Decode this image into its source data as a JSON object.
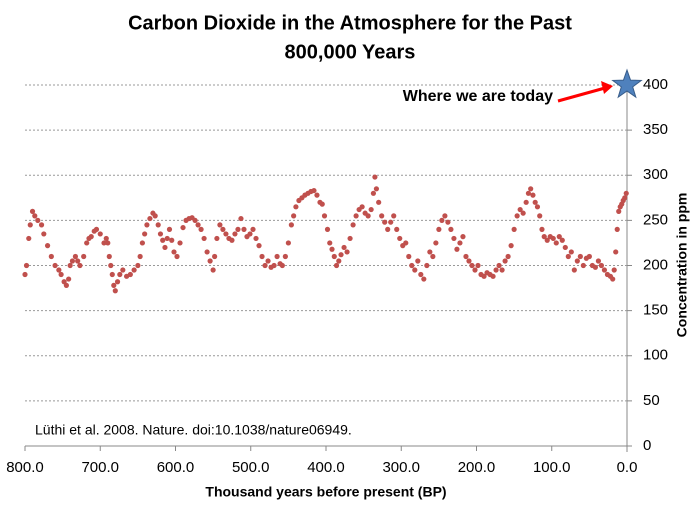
{
  "chart_data": {
    "type": "scatter",
    "title": [
      "Carbon Dioxide in the Atmosphere for the Past",
      "800,000 Years"
    ],
    "x_label": "Thousand years before present (BP)",
    "y_label": "Concentration in ppm",
    "source": "Lüthi et al. 2008. Nature. doi:10.1038/nature06949.",
    "color": "#c0504d",
    "grid": true,
    "xlim": [
      800,
      0
    ],
    "ylim": [
      0,
      400
    ],
    "xticks": [
      {
        "value": 800,
        "label": "800.0"
      },
      {
        "value": 700,
        "label": "700.0"
      },
      {
        "value": 600,
        "label": "600.0"
      },
      {
        "value": 500,
        "label": "500.0"
      },
      {
        "value": 400,
        "label": "400.0"
      },
      {
        "value": 300,
        "label": "300.0"
      },
      {
        "value": 200,
        "label": "200.0"
      },
      {
        "value": 100,
        "label": "100.0"
      },
      {
        "value": 0,
        "label": "0.0"
      }
    ],
    "yticks": [
      0,
      50,
      100,
      150,
      200,
      250,
      300,
      350,
      400
    ],
    "highlight": {
      "x": 0,
      "value": 400,
      "label": "Where we are today",
      "color": "#4f81bd",
      "arrow_color": "#ff0000"
    },
    "x": [
      800,
      798,
      795,
      793,
      790,
      787,
      783,
      778,
      775,
      770,
      765,
      760,
      755,
      752,
      748,
      745,
      742,
      740,
      737,
      733,
      730,
      727,
      722,
      718,
      715,
      712,
      708,
      705,
      700,
      695,
      692,
      690,
      688,
      686,
      684,
      682,
      680,
      677,
      674,
      670,
      665,
      660,
      655,
      650,
      647,
      644,
      641,
      638,
      634,
      630,
      627,
      623,
      620,
      617,
      614,
      611,
      608,
      605,
      602,
      598,
      594,
      590,
      586,
      582,
      578,
      574,
      570,
      566,
      562,
      558,
      554,
      550,
      548,
      545,
      541,
      537,
      533,
      529,
      525,
      521,
      517,
      513,
      509,
      505,
      501,
      497,
      493,
      489,
      485,
      481,
      477,
      473,
      469,
      465,
      461,
      458,
      454,
      450,
      446,
      443,
      440,
      436,
      432,
      428,
      424,
      420,
      416,
      412,
      408,
      405,
      402,
      398,
      395,
      392,
      389,
      386,
      383,
      380,
      376,
      372,
      368,
      364,
      360,
      356,
      352,
      348,
      344,
      340,
      337,
      335,
      333,
      330,
      326,
      322,
      318,
      314,
      310,
      306,
      302,
      298,
      294,
      290,
      286,
      282,
      278,
      274,
      270,
      266,
      262,
      258,
      254,
      250,
      246,
      242,
      238,
      234,
      230,
      226,
      222,
      218,
      214,
      210,
      206,
      202,
      198,
      194,
      190,
      186,
      182,
      178,
      174,
      170,
      166,
      162,
      158,
      154,
      150,
      146,
      142,
      138,
      134,
      131,
      128,
      125,
      122,
      119,
      116,
      113,
      110,
      106,
      102,
      98,
      94,
      90,
      86,
      82,
      78,
      74,
      70,
      66,
      62,
      58,
      54,
      50,
      46,
      42,
      38,
      34,
      30,
      26,
      22,
      19,
      17,
      15,
      13,
      11,
      9,
      7,
      5,
      3,
      1
    ],
    "values": [
      190,
      200,
      230,
      245,
      260,
      255,
      250,
      245,
      235,
      222,
      210,
      200,
      195,
      190,
      182,
      178,
      185,
      200,
      205,
      210,
      205,
      200,
      210,
      225,
      230,
      232,
      238,
      240,
      235,
      225,
      230,
      225,
      210,
      200,
      190,
      178,
      172,
      182,
      190,
      195,
      188,
      190,
      195,
      200,
      210,
      225,
      235,
      245,
      252,
      258,
      255,
      245,
      235,
      228,
      220,
      230,
      240,
      228,
      215,
      210,
      225,
      242,
      250,
      252,
      253,
      250,
      245,
      240,
      230,
      215,
      205,
      195,
      210,
      230,
      245,
      240,
      235,
      230,
      228,
      235,
      240,
      252,
      240,
      232,
      235,
      240,
      230,
      222,
      210,
      200,
      205,
      198,
      200,
      210,
      202,
      200,
      210,
      225,
      245,
      255,
      265,
      272,
      275,
      278,
      280,
      282,
      283,
      278,
      270,
      268,
      255,
      240,
      225,
      218,
      210,
      200,
      205,
      212,
      220,
      215,
      230,
      245,
      255,
      262,
      265,
      258,
      255,
      262,
      280,
      298,
      285,
      270,
      255,
      248,
      240,
      248,
      255,
      240,
      230,
      222,
      225,
      210,
      200,
      195,
      205,
      190,
      185,
      200,
      215,
      210,
      225,
      240,
      250,
      255,
      248,
      240,
      230,
      218,
      225,
      232,
      210,
      205,
      200,
      195,
      200,
      190,
      188,
      192,
      190,
      188,
      195,
      200,
      195,
      205,
      210,
      222,
      240,
      255,
      262,
      258,
      270,
      280,
      285,
      278,
      270,
      265,
      255,
      240,
      232,
      228,
      232,
      230,
      225,
      232,
      228,
      220,
      210,
      215,
      195,
      205,
      210,
      200,
      208,
      210,
      200,
      198,
      205,
      200,
      195,
      190,
      188,
      185,
      195,
      215,
      240,
      260,
      265,
      268,
      272,
      275,
      280
    ]
  }
}
